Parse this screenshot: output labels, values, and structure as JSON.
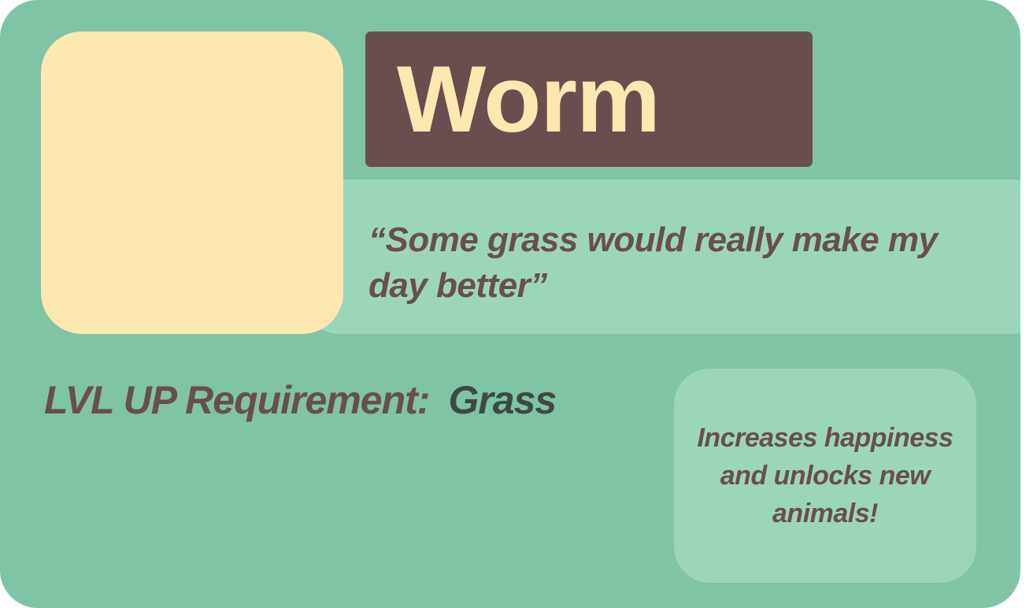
{
  "card": {
    "name": "Worm",
    "quote": "“Some grass would really make my day better”",
    "requirement_label": "LVL UP Requirement:",
    "requirement_value": "Grass",
    "reward_text": "Increases happiness and unlocks new animals!"
  },
  "colors": {
    "card_background": "#7fc4a4",
    "portrait": "#fde8b0",
    "name_banner": "#6a4e4f",
    "name_text": "#fde8b0",
    "panel": "#9bd6bb",
    "text_primary": "#6a4e4f",
    "text_value": "#3d4a44"
  }
}
